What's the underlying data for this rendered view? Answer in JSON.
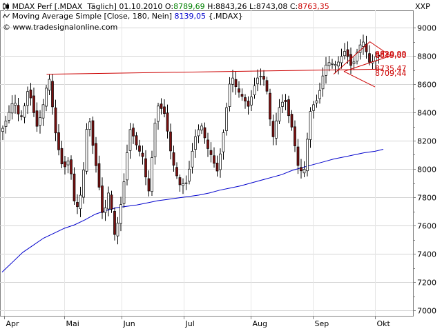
{
  "header": {
    "line1": {
      "prefix": "MDAX Perf [.MDAX  Täglich] 01.10.2010 ",
      "open_label": "O:",
      "open_value": "8789,69",
      "hl": " H:8843,26 L:8743,08 ",
      "close_label": "C:",
      "close_value": "8763,35"
    },
    "line2": {
      "prefix": "Moving Average Simple [Close, 180, Nein] ",
      "value": "8139,05",
      "suffix": " {.MDAX}"
    },
    "line3": "© www.tradesignalonline.com"
  },
  "chart_data": {
    "type": "candlestick",
    "symbol": "XXP",
    "ylim": [
      6950,
      9150
    ],
    "y_ticks": [
      "9000",
      "8800",
      "8600",
      "8400",
      "8200",
      "8000",
      "7800",
      "7600",
      "7400",
      "7200",
      "7000"
    ],
    "x_labels": [
      "Apr",
      "Mai",
      "Jun",
      "Jul",
      "Aug",
      "Sep",
      "Okt"
    ],
    "grid": true,
    "price_labels": [
      "8829,99",
      "8849,00",
      "8735,47",
      "8709,44"
    ],
    "colors": {
      "up": "#ffffff",
      "down": "#7a1010",
      "outline": "#000000",
      "moving_average": "#0000cc",
      "trendline": "#cc0000",
      "open_value": "#008000",
      "close_value": "#cc0000",
      "ma_value": "#0000cc"
    },
    "moving_average": [
      [
        0,
        7270
      ],
      [
        10,
        7340
      ],
      [
        20,
        7410
      ],
      [
        30,
        7460
      ],
      [
        40,
        7510
      ],
      [
        50,
        7545
      ],
      [
        60,
        7580
      ],
      [
        70,
        7605
      ],
      [
        80,
        7640
      ],
      [
        90,
        7680
      ],
      [
        100,
        7705
      ],
      [
        110,
        7725
      ],
      [
        120,
        7735
      ],
      [
        130,
        7745
      ],
      [
        140,
        7760
      ],
      [
        150,
        7775
      ],
      [
        160,
        7785
      ],
      [
        170,
        7795
      ],
      [
        180,
        7805
      ],
      [
        190,
        7815
      ],
      [
        200,
        7830
      ],
      [
        210,
        7850
      ],
      [
        220,
        7865
      ],
      [
        230,
        7880
      ],
      [
        240,
        7900
      ],
      [
        250,
        7920
      ],
      [
        260,
        7940
      ],
      [
        270,
        7960
      ],
      [
        280,
        7990
      ],
      [
        290,
        8010
      ],
      [
        300,
        8030
      ],
      [
        310,
        8050
      ],
      [
        320,
        8070
      ],
      [
        330,
        8085
      ],
      [
        340,
        8100
      ],
      [
        350,
        8115
      ],
      [
        360,
        8125
      ],
      [
        368,
        8139
      ]
    ],
    "trend_lines": [
      {
        "name": "resistance",
        "points": [
          [
            43,
            8670
          ],
          [
            368,
            8706
          ]
        ]
      },
      {
        "name": "wedge-upper-a",
        "points": [
          [
            320,
            8670
          ],
          [
            355,
            8900
          ]
        ]
      },
      {
        "name": "wedge-upper-b",
        "points": [
          [
            355,
            8900
          ],
          [
            375,
            8800
          ]
        ]
      },
      {
        "name": "wedge-lower-a",
        "points": [
          [
            330,
            8690
          ],
          [
            375,
            8800
          ]
        ]
      },
      {
        "name": "wedge-lower-b",
        "points": [
          [
            330,
            8690
          ],
          [
            360,
            8580
          ]
        ]
      }
    ]
  }
}
